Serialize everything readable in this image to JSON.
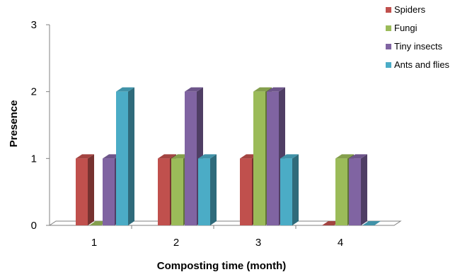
{
  "chart_data": {
    "type": "bar",
    "title": "",
    "xlabel": "Composting time (month)",
    "ylabel": "Presence",
    "categories": [
      "1",
      "2",
      "3",
      "4"
    ],
    "yticks": [
      "0",
      "1",
      "2",
      "3"
    ],
    "ylim": [
      0,
      3
    ],
    "grid": false,
    "legend_position": "top-right",
    "series": [
      {
        "name": "Spiders",
        "color": "#c0504d",
        "values": [
          1,
          1,
          1,
          0
        ]
      },
      {
        "name": "Fungi",
        "color": "#9bbb59",
        "values": [
          0,
          1,
          2,
          1
        ]
      },
      {
        "name": "Tiny insects",
        "color": "#8064a2",
        "values": [
          1,
          2,
          2,
          1
        ]
      },
      {
        "name": "Ants and flies",
        "color": "#4bacc6",
        "values": [
          2,
          1,
          1,
          0
        ]
      }
    ]
  }
}
